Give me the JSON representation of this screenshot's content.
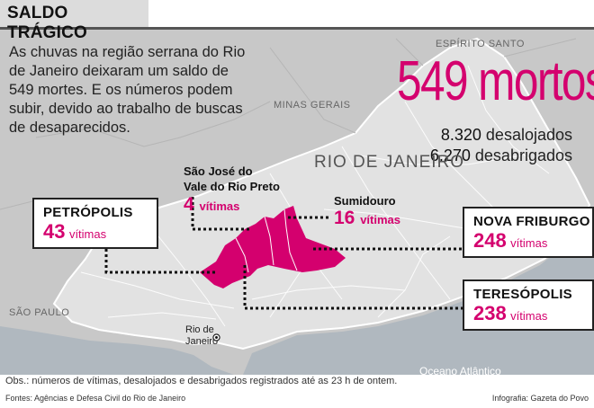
{
  "header": {
    "title": "SALDO TRÁGICO"
  },
  "intro_text": "As chuvas na região serrana do Rio de Janeiro deixaram um saldo de 549 mortes. E os números podem subir, devido ao trabalho de buscas de desaparecidos.",
  "totals": {
    "deaths": "549 mortos",
    "displaced_value": "8.320",
    "displaced_label": "desalojados",
    "homeless_value": "6.270",
    "homeless_label": "desabrigados"
  },
  "map_labels": {
    "espirito_santo": "ESPÍRITO SANTO",
    "minas_gerais": "MINAS GERAIS",
    "rio_de_janeiro_state": "RIO DE JANEIRO",
    "sao_paulo": "SÃO PAULO",
    "rio_city_line1": "Rio de",
    "rio_city_line2": "Janeiro",
    "ocean": "Oceano Atlântico"
  },
  "cities": {
    "petropolis": {
      "name": "PETRÓPOLIS",
      "value": "43",
      "unit": "vítimas"
    },
    "sao_jose": {
      "name_line1": "São José do",
      "name_line2": "Vale do Rio Preto",
      "value": "4",
      "unit": "vítimas"
    },
    "sumidouro": {
      "name": "Sumidouro",
      "value": "16",
      "unit": "vítimas"
    },
    "nova_friburgo": {
      "name": "NOVA FRIBURGO",
      "value": "248",
      "unit": "vítimas"
    },
    "teresopolis": {
      "name": "TERESÓPOLIS",
      "value": "238",
      "unit": "vítimas"
    }
  },
  "footer": {
    "obs": "Obs.: números de vítimas, desalojados e desabrigados registrados até as 23 h de ontem.",
    "sources": "Fontes: Agências e Defesa Civil do Rio de Janeiro",
    "credit": "Infografia: Gazeta do Povo"
  },
  "colors": {
    "accent": "#d4006e",
    "land": "#c8c8c8",
    "sea": "#aeb7c0",
    "state_rj": "#e4e4e4"
  }
}
